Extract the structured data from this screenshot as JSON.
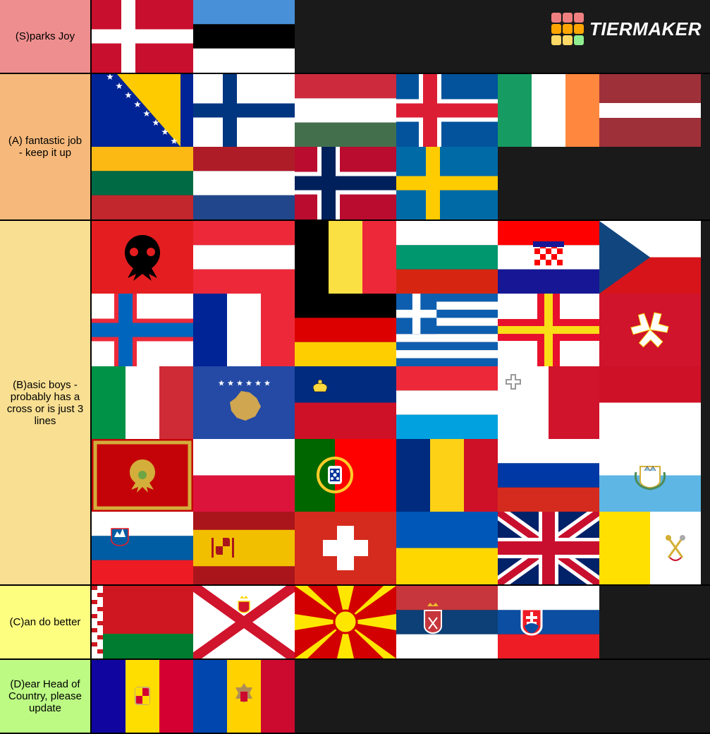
{
  "watermark": {
    "text": "TIERMAKER",
    "grid_colors": [
      "#f08080",
      "#f08080",
      "#f08080",
      "#ffa500",
      "#ffa500",
      "#ffa500",
      "#ffd966",
      "#ffd966",
      "#90ee90"
    ]
  },
  "tiers": [
    {
      "label": "(S)parks Joy",
      "color": "#ef8e8e",
      "flags": [
        "denmark",
        "estonia"
      ]
    },
    {
      "label": "(A) fantastic job - keep it up",
      "color": "#f6b97b",
      "flags": [
        "bosnia",
        "finland",
        "hungary",
        "iceland",
        "ireland",
        "latvia",
        "lithuania",
        "netherlands",
        "norway",
        "sweden"
      ]
    },
    {
      "label": "(B)asic boys - probably has a cross or is just 3 lines",
      "color": "#f8df92",
      "flags": [
        "albania",
        "austria",
        "belgium",
        "bulgaria",
        "croatia",
        "czech",
        "faroe",
        "france",
        "germany",
        "greece",
        "guernsey",
        "isleofman",
        "italy",
        "kosovo",
        "liechtenstein",
        "luxembourg",
        "malta",
        "monaco",
        "montenegro",
        "poland",
        "portugal",
        "romania",
        "russia",
        "sanmarino",
        "slovenia",
        "spain",
        "switzerland",
        "ukraine",
        "uk",
        "vatican"
      ]
    },
    {
      "label": "(C)an do better",
      "color": "#fdfe80",
      "flags": [
        "belarus",
        "jersey",
        "macedonia",
        "serbia",
        "slovakia"
      ]
    },
    {
      "label": "(D)ear Head of Country, please update",
      "color": "#bcfa84",
      "flags": [
        "andorra",
        "moldova"
      ]
    }
  ],
  "flag_names": {
    "denmark": "Denmark",
    "estonia": "Estonia",
    "bosnia": "Bosnia",
    "finland": "Finland",
    "hungary": "Hungary",
    "iceland": "Iceland",
    "ireland": "Ireland",
    "latvia": "Latvia",
    "lithuania": "Lithuania",
    "netherlands": "Netherlands",
    "norway": "Norway",
    "sweden": "Sweden",
    "albania": "Albania",
    "austria": "Austria",
    "belgium": "Belgium",
    "bulgaria": "Bulgaria",
    "croatia": "Croatia",
    "czech": "Czechia",
    "faroe": "Faroe",
    "france": "France",
    "germany": "Germany",
    "greece": "Greece",
    "guernsey": "Guernsey",
    "isleofman": "Isle of Man",
    "italy": "Italy",
    "kosovo": "Kosovo",
    "liechtenstein": "Liechtenstein",
    "luxembourg": "Luxembourg",
    "malta": "Malta",
    "monaco": "Monaco",
    "montenegro": "Montenegro",
    "poland": "Poland",
    "portugal": "Portugal",
    "romania": "Romania",
    "russia": "Russia",
    "sanmarino": "San Marino",
    "slovenia": "Slovenia",
    "spain": "Spain",
    "switzerland": "Switzerland",
    "ukraine": "Ukraine",
    "uk": "UK",
    "vatican": "Vatican",
    "belarus": "Belarus",
    "jersey": "Jersey",
    "macedonia": "North Macedonia",
    "serbia": "Serbia",
    "slovakia": "Slovakia",
    "andorra": "Andorra",
    "moldova": "Moldova"
  }
}
